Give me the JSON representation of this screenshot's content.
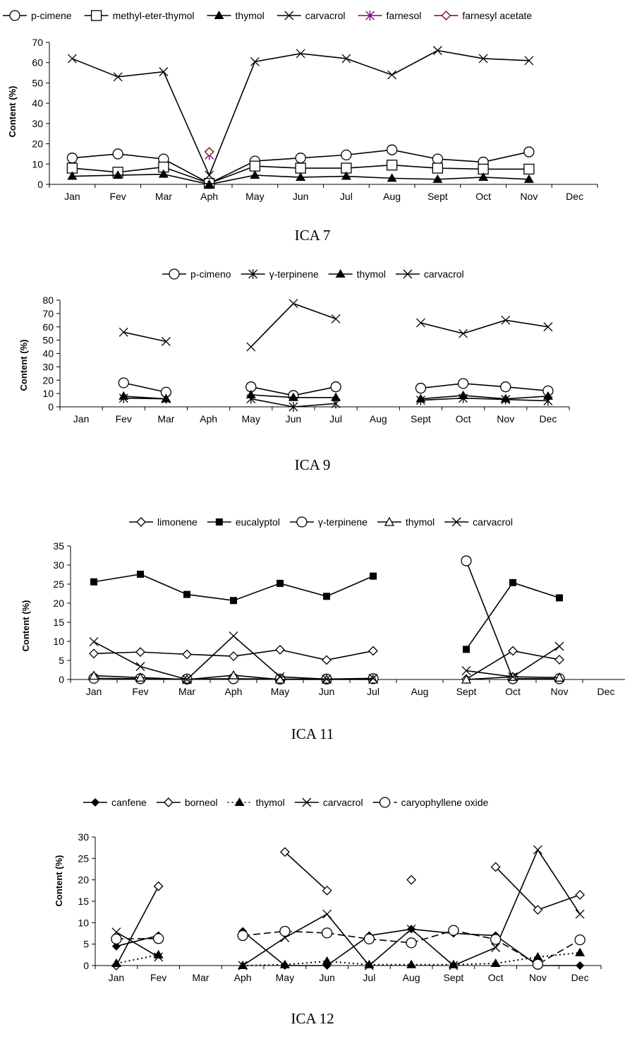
{
  "chart_data": [
    {
      "type": "line",
      "title": "ICA 7",
      "ylabel": "Content (%)",
      "ylim": [
        0,
        70
      ],
      "yticks": [
        "0",
        "10",
        "20",
        "30",
        "40",
        "50",
        "60",
        "70"
      ],
      "categories": [
        "Jan",
        "Fev",
        "Mar",
        "Aph",
        "May",
        "Jun",
        "Jul",
        "Aug",
        "Sept",
        "Oct",
        "Nov",
        "Dec"
      ],
      "legend_position": "top",
      "series": [
        {
          "name": "p-cimene",
          "marker": "circle-open",
          "line": "solid",
          "color": "#000000",
          "values": [
            13,
            15,
            12.5,
            0.5,
            11.5,
            13,
            14.5,
            17,
            12.5,
            11,
            16,
            null
          ]
        },
        {
          "name": "methyl-eter-thymol",
          "marker": "square-open",
          "line": "solid",
          "color": "#000000",
          "values": [
            8,
            6,
            8.5,
            0.5,
            9,
            8,
            8,
            9.5,
            8,
            7.5,
            7.5,
            null
          ]
        },
        {
          "name": "thymol",
          "marker": "triangle-filled",
          "line": "solid",
          "color": "#000000",
          "values": [
            4,
            4.5,
            5,
            0,
            4.5,
            3.5,
            4,
            3,
            2.5,
            3.5,
            2.5,
            null
          ]
        },
        {
          "name": "carvacrol",
          "marker": "x",
          "line": "solid",
          "color": "#000000",
          "values": [
            62,
            53,
            55.5,
            4.5,
            60.5,
            64.5,
            62,
            54,
            66,
            62,
            61,
            null
          ]
        },
        {
          "name": "farnesol",
          "marker": "star",
          "line": "solid",
          "color": "#800080",
          "values": [
            null,
            null,
            null,
            14.5,
            null,
            null,
            null,
            null,
            null,
            null,
            null,
            null
          ]
        },
        {
          "name": "farnesyl acetate",
          "marker": "diamond-open",
          "line": "solid",
          "color": "#800000",
          "values": [
            null,
            null,
            null,
            16,
            null,
            null,
            null,
            null,
            null,
            null,
            null,
            null
          ]
        }
      ]
    },
    {
      "type": "line",
      "title": "ICA 9",
      "ylabel": "Content (%)",
      "ylim": [
        0,
        80
      ],
      "yticks": [
        "0",
        "10",
        "20",
        "30",
        "40",
        "50",
        "60",
        "70",
        "80"
      ],
      "categories": [
        "Jan",
        "Fev",
        "Mar",
        "Aph",
        "May",
        "Jun",
        "Jul",
        "Aug",
        "Sept",
        "Oct",
        "Nov",
        "Dec"
      ],
      "legend_position": "top",
      "series": [
        {
          "name": "p-cimeno",
          "marker": "circle-open",
          "line": "solid",
          "color": "#000000",
          "values": [
            null,
            18,
            11,
            null,
            15,
            8.5,
            15,
            null,
            14,
            17.5,
            15,
            12
          ]
        },
        {
          "name": "γ-terpinene",
          "marker": "asterisk",
          "line": "solid",
          "color": "#000000",
          "values": [
            null,
            6.5,
            6,
            null,
            6,
            0,
            2.5,
            null,
            5,
            6.5,
            5.5,
            4.5
          ]
        },
        {
          "name": "thymol",
          "marker": "triangle-filled",
          "line": "solid",
          "color": "#000000",
          "values": [
            null,
            8,
            6,
            null,
            9,
            7,
            7,
            null,
            6,
            8.5,
            6,
            8
          ]
        },
        {
          "name": "carvacrol",
          "marker": "x",
          "line": "solid",
          "color": "#000000",
          "values": [
            null,
            56,
            49,
            null,
            45,
            77.5,
            66,
            null,
            63,
            55,
            65,
            60
          ]
        }
      ]
    },
    {
      "type": "line",
      "title": "ICA 11",
      "ylabel": "Content (%)",
      "ylim": [
        0,
        35
      ],
      "yticks": [
        "0",
        "5",
        "10",
        "15",
        "20",
        "25",
        "30",
        "35"
      ],
      "categories": [
        "Jan",
        "Fev",
        "Mar",
        "Aph",
        "May",
        "Jun",
        "Jul",
        "Aug",
        "Sept",
        "Oct",
        "Nov",
        "Dec"
      ],
      "legend_position": "top",
      "series": [
        {
          "name": "limonene",
          "marker": "diamond-open",
          "line": "solid",
          "color": "#000000",
          "values": [
            6.8,
            7.2,
            6.6,
            6.1,
            7.8,
            5.1,
            7.5,
            null,
            0.1,
            7.5,
            5.2,
            null
          ]
        },
        {
          "name": "eucalyptol",
          "marker": "square-filled",
          "line": "solid",
          "color": "#000000",
          "values": [
            25.6,
            27.6,
            22.3,
            20.7,
            25.2,
            21.8,
            27.1,
            null,
            7.9,
            25.4,
            21.4,
            null
          ]
        },
        {
          "name": "γ-terpinene",
          "marker": "circle-open",
          "line": "solid",
          "color": "#000000",
          "values": [
            0.3,
            0.2,
            0.1,
            0.2,
            0.1,
            0.1,
            0.2,
            null,
            31.1,
            0.2,
            0.2,
            null
          ]
        },
        {
          "name": "thymol",
          "marker": "triangle-open",
          "line": "solid",
          "color": "#000000",
          "values": [
            1.0,
            0.5,
            0,
            1.1,
            0,
            0,
            0,
            null,
            0,
            0.7,
            0.5,
            null
          ]
        },
        {
          "name": "carvacrol",
          "marker": "x",
          "line": "solid",
          "color": "#000000",
          "values": [
            9.9,
            3.4,
            0,
            11.4,
            0.7,
            0.1,
            0.3,
            null,
            2.3,
            0.7,
            8.7,
            null
          ]
        }
      ]
    },
    {
      "type": "line",
      "title": "ICA 12",
      "ylabel": "Content (%)",
      "ylim": [
        0,
        30
      ],
      "yticks": [
        "0",
        "5",
        "10",
        "15",
        "20",
        "25",
        "30"
      ],
      "categories": [
        "Jan",
        "Fev",
        "Mar",
        "Aph",
        "May",
        "Jun",
        "Jul",
        "Aug",
        "Sept",
        "Oct",
        "Nov",
        "Dec"
      ],
      "legend_position": "top",
      "series": [
        {
          "name": "canfene",
          "marker": "diamond-filled",
          "line": "solid",
          "color": "#000000",
          "values": [
            4.5,
            7,
            null,
            8,
            0,
            0,
            7,
            8.5,
            7.5,
            7,
            0,
            0
          ]
        },
        {
          "name": "borneol",
          "marker": "diamond-open",
          "line": "solid",
          "color": "#000000",
          "values": [
            0,
            18.5,
            null,
            null,
            26.5,
            17.5,
            null,
            20,
            null,
            23,
            13,
            16.5
          ]
        },
        {
          "name": "thymol",
          "marker": "triangle-filled",
          "line": "dotted",
          "color": "#000000",
          "values": [
            0.5,
            2.5,
            null,
            0,
            0.2,
            1,
            0.2,
            0.2,
            0.2,
            0.5,
            2,
            3
          ]
        },
        {
          "name": "carvacrol",
          "marker": "x",
          "line": "solid",
          "color": "#000000",
          "values": [
            7.8,
            2,
            null,
            0,
            6.5,
            12,
            0,
            8.5,
            0,
            4.2,
            27,
            12
          ]
        },
        {
          "name": "caryophyllene oxide",
          "marker": "circle-open",
          "line": "dashed",
          "color": "#000000",
          "values": [
            6.2,
            6.3,
            null,
            7,
            8,
            7.6,
            6.2,
            5.3,
            8.2,
            6.1,
            0.3,
            6
          ]
        }
      ]
    }
  ]
}
